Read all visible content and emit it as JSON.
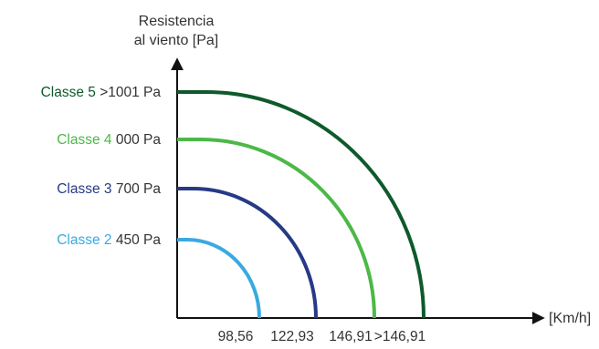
{
  "chart_data": {
    "type": "quarter-arc",
    "y_axis_title_lines": [
      "Resistencia",
      "al viento [Pa]"
    ],
    "x_axis_title": "[Km/h]",
    "series": [
      {
        "name": "Classe 2",
        "pressure_label": "450  Pa",
        "speed_label": "98,56",
        "color": "#3aa9e0"
      },
      {
        "name": "Classe 3",
        "pressure_label": "700  Pa",
        "speed_label": "122,93",
        "color": "#263a86"
      },
      {
        "name": "Classe 4",
        "pressure_label": "000  Pa",
        "speed_label": "146,91",
        "color": "#4cb848"
      },
      {
        "name": "Classe 5",
        "pressure_label": ">1001  Pa",
        "speed_label": ">146,91",
        "color": "#0e5a2c"
      }
    ],
    "grid": false,
    "legend": "left of y-axis, aligned with arc tops"
  }
}
